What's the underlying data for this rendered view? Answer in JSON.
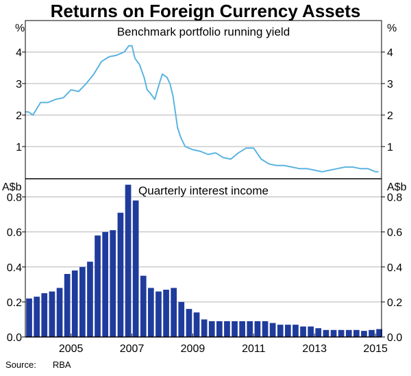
{
  "title": "Returns on Foreign Currency Assets",
  "source_label": "Source:",
  "source_value": "RBA",
  "colors": {
    "line": "#5ab4e0",
    "bar": "#1f3c9c",
    "grid": "#b3b3b3",
    "axis": "#000000"
  },
  "chart_data": [
    {
      "type": "line",
      "title": "Benchmark portfolio running yield",
      "ylabel_left": "%",
      "ylabel_right": "%",
      "ylim": [
        0,
        5
      ],
      "yticks": [
        1,
        2,
        3,
        4
      ],
      "xlim": [
        2003.5,
        2015.2
      ],
      "grid": true,
      "series": [
        {
          "x": [
            2003.5,
            2003.6,
            2003.75,
            2004.0,
            2004.25,
            2004.5,
            2004.75,
            2005.0,
            2005.25,
            2005.5,
            2005.75,
            2006.0,
            2006.25,
            2006.5,
            2006.75,
            2006.9,
            2007.0,
            2007.1,
            2007.25,
            2007.4,
            2007.5,
            2007.6,
            2007.75,
            2007.9,
            2008.0,
            2008.15,
            2008.25,
            2008.35,
            2008.5,
            2008.6,
            2008.75,
            2009.0,
            2009.25,
            2009.5,
            2009.75,
            2010.0,
            2010.25,
            2010.5,
            2010.75,
            2011.0,
            2011.25,
            2011.5,
            2011.75,
            2012.0,
            2012.25,
            2012.5,
            2012.75,
            2013.0,
            2013.25,
            2013.5,
            2013.75,
            2014.0,
            2014.25,
            2014.5,
            2014.75,
            2015.0,
            2015.1
          ],
          "y": [
            2.1,
            2.1,
            2.0,
            2.4,
            2.4,
            2.5,
            2.55,
            2.8,
            2.75,
            3.0,
            3.3,
            3.7,
            3.85,
            3.9,
            4.0,
            4.2,
            4.2,
            3.8,
            3.6,
            3.2,
            2.8,
            2.7,
            2.5,
            3.0,
            3.3,
            3.2,
            3.0,
            2.6,
            1.6,
            1.3,
            1.0,
            0.9,
            0.85,
            0.75,
            0.8,
            0.65,
            0.6,
            0.8,
            0.95,
            0.95,
            0.6,
            0.45,
            0.4,
            0.4,
            0.35,
            0.3,
            0.3,
            0.25,
            0.2,
            0.25,
            0.3,
            0.35,
            0.35,
            0.3,
            0.3,
            0.2,
            0.2
          ]
        }
      ]
    },
    {
      "type": "bar",
      "title": "Quarterly interest income",
      "ylabel_left": "A$b",
      "ylabel_right": "A$b",
      "ylim": [
        0,
        0.9
      ],
      "yticks": [
        0.0,
        0.2,
        0.4,
        0.6,
        0.8
      ],
      "xlim": [
        2003.5,
        2015.2
      ],
      "xticks": [
        2005,
        2007,
        2009,
        2011,
        2013,
        2015
      ],
      "xticklabels": [
        "2005",
        "2007",
        "2009",
        "2011",
        "2013",
        "2015"
      ],
      "grid": true,
      "x": [
        2003.625,
        2003.875,
        2004.125,
        2004.375,
        2004.625,
        2004.875,
        2005.125,
        2005.375,
        2005.625,
        2005.875,
        2006.125,
        2006.375,
        2006.625,
        2006.875,
        2007.125,
        2007.375,
        2007.625,
        2007.875,
        2008.125,
        2008.375,
        2008.625,
        2008.875,
        2009.125,
        2009.375,
        2009.625,
        2009.875,
        2010.125,
        2010.375,
        2010.625,
        2010.875,
        2011.125,
        2011.375,
        2011.625,
        2011.875,
        2012.125,
        2012.375,
        2012.625,
        2012.875,
        2013.125,
        2013.375,
        2013.625,
        2013.875,
        2014.125,
        2014.375,
        2014.625,
        2014.875,
        2015.125
      ],
      "values": [
        0.22,
        0.23,
        0.25,
        0.26,
        0.28,
        0.36,
        0.38,
        0.4,
        0.43,
        0.58,
        0.6,
        0.61,
        0.71,
        0.87,
        0.78,
        0.35,
        0.28,
        0.26,
        0.27,
        0.28,
        0.2,
        0.16,
        0.14,
        0.1,
        0.09,
        0.09,
        0.09,
        0.09,
        0.09,
        0.09,
        0.09,
        0.09,
        0.08,
        0.07,
        0.07,
        0.07,
        0.06,
        0.06,
        0.05,
        0.04,
        0.04,
        0.04,
        0.04,
        0.04,
        0.035,
        0.04,
        0.045
      ]
    }
  ]
}
